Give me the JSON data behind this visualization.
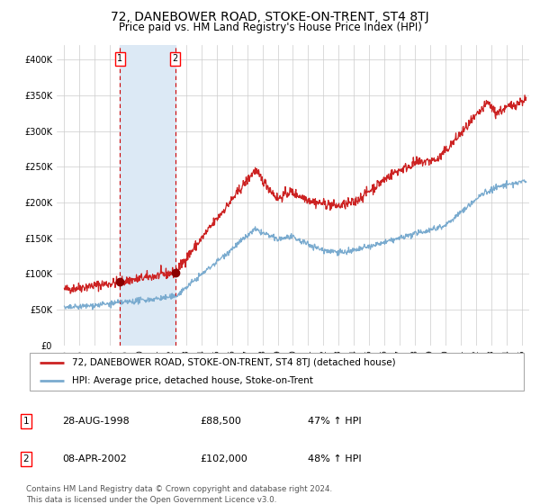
{
  "title": "72, DANEBOWER ROAD, STOKE-ON-TRENT, ST4 8TJ",
  "subtitle": "Price paid vs. HM Land Registry's House Price Index (HPI)",
  "title_fontsize": 10,
  "subtitle_fontsize": 8.5,
  "xlim": [
    1994.5,
    2025.5
  ],
  "ylim": [
    0,
    420000
  ],
  "yticks": [
    0,
    50000,
    100000,
    150000,
    200000,
    250000,
    300000,
    350000,
    400000
  ],
  "ytick_labels": [
    "£0",
    "£50K",
    "£100K",
    "£150K",
    "£200K",
    "£250K",
    "£300K",
    "£350K",
    "£400K"
  ],
  "xtick_years": [
    1995,
    1996,
    1997,
    1998,
    1999,
    2000,
    2001,
    2002,
    2003,
    2004,
    2005,
    2006,
    2007,
    2008,
    2009,
    2010,
    2011,
    2012,
    2013,
    2014,
    2015,
    2016,
    2017,
    2018,
    2019,
    2020,
    2021,
    2022,
    2023,
    2024,
    2025
  ],
  "sale1_date": 1998.66,
  "sale1_price": 88500,
  "sale1_label": "1",
  "sale2_date": 2002.27,
  "sale2_price": 102000,
  "sale2_label": "2",
  "shade_xmin": 1998.66,
  "shade_xmax": 2002.27,
  "shade_color": "#dce9f5",
  "dashed_line_color": "#cc0000",
  "marker_color": "#8b0000",
  "red_line_color": "#cc2222",
  "blue_line_color": "#7aabcf",
  "legend_red_label": "72, DANEBOWER ROAD, STOKE-ON-TRENT, ST4 8TJ (detached house)",
  "legend_blue_label": "HPI: Average price, detached house, Stoke-on-Trent",
  "table_rows": [
    {
      "num": "1",
      "date": "28-AUG-1998",
      "price": "£88,500",
      "hpi": "47% ↑ HPI"
    },
    {
      "num": "2",
      "date": "08-APR-2002",
      "price": "£102,000",
      "hpi": "48% ↑ HPI"
    }
  ],
  "footer": "Contains HM Land Registry data © Crown copyright and database right 2024.\nThis data is licensed under the Open Government Licence v3.0.",
  "bg_color": "#ffffff",
  "grid_color": "#cccccc"
}
